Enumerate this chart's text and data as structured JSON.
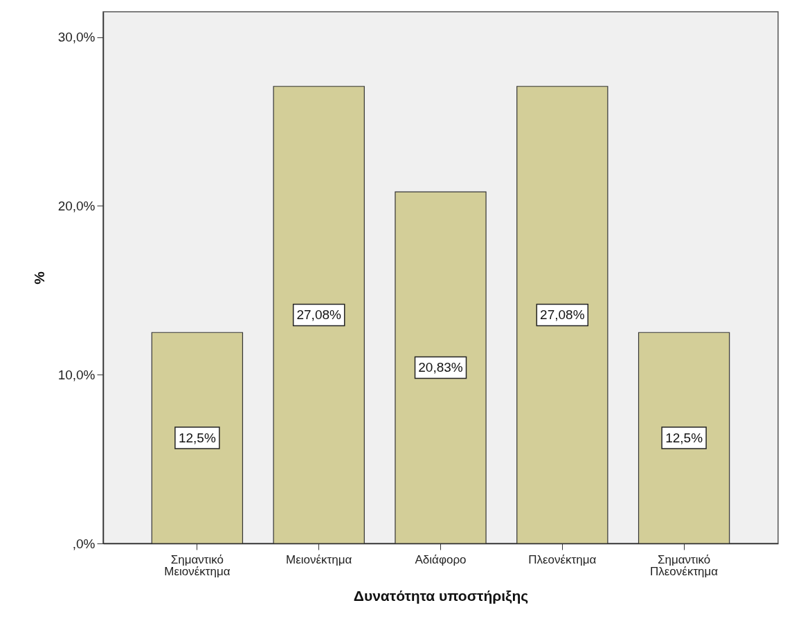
{
  "chart_data": {
    "type": "bar",
    "xlabel": "Δυνατότητα υποστήριξης",
    "ylabel": "%",
    "categories": [
      "Σημαντικό Μειονέκτημα",
      "Μειονέκτημα",
      "Αδιάφορο",
      "Πλεονέκτημα",
      "Σημαντικό Πλεονέκτημα"
    ],
    "values": [
      12.5,
      27.08,
      20.83,
      27.08,
      12.5
    ],
    "value_labels": [
      "12,5%",
      "27,08%",
      "20,83%",
      "27,08%",
      "12,5%"
    ],
    "color": "#d3ce98",
    "ylim": [
      0,
      31.5
    ],
    "yticks": [
      {
        "value": 0,
        "label": ",0%"
      },
      {
        "value": 10,
        "label": "10,0%"
      },
      {
        "value": 20,
        "label": "20,0%"
      },
      {
        "value": 30,
        "label": "30,0%"
      }
    ]
  }
}
